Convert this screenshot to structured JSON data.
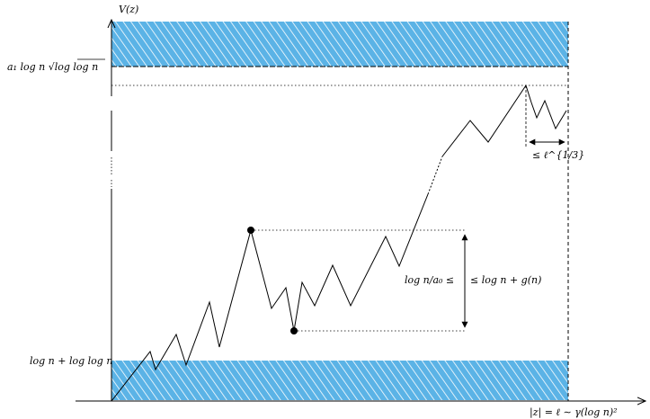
{
  "labels": {
    "y_axis": "V(z)",
    "upper_level": "a₁ log n √log log n",
    "lower_level": "log n + log log n",
    "x_axis": "|z| = ℓ ∼ γ(log n)²",
    "vertical_left": "log n/a₀ ≤",
    "vertical_right": "≤ log n + g(n)",
    "horizontal": "≤ ℓ^{1/3}"
  },
  "colors": {
    "hatch_band": "#5bb3e6",
    "line": "#000000"
  },
  "icons": {
    "local_max": "filled-dot",
    "local_min": "filled-dot"
  }
}
